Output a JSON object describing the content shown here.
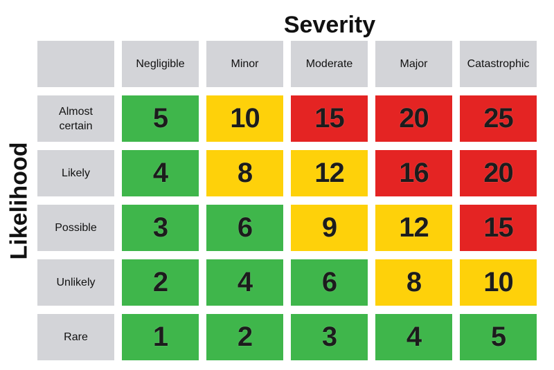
{
  "title": "Severity",
  "ylabel": "Likelihood",
  "columns": [
    "Negligible",
    "Minor",
    "Moderate",
    "Major",
    "Catastrophic"
  ],
  "rows": [
    "Almost\ncertain",
    "Likely",
    "Possible",
    "Unlikely",
    "Rare"
  ],
  "colors": {
    "green": "#3fb64b",
    "yellow": "#fed10a",
    "red": "#e42423",
    "header": "#d3d4d8"
  },
  "chart_data": {
    "type": "heatmap",
    "title": "Severity",
    "xlabel": "Severity",
    "ylabel": "Likelihood",
    "x": [
      "Negligible",
      "Minor",
      "Moderate",
      "Major",
      "Catastrophic"
    ],
    "y": [
      "Almost certain",
      "Likely",
      "Possible",
      "Unlikely",
      "Rare"
    ],
    "values": [
      [
        5,
        10,
        15,
        20,
        25
      ],
      [
        4,
        8,
        12,
        16,
        20
      ],
      [
        3,
        6,
        9,
        12,
        15
      ],
      [
        2,
        4,
        6,
        8,
        10
      ],
      [
        1,
        2,
        3,
        4,
        5
      ]
    ],
    "cell_colors": [
      [
        "green",
        "yellow",
        "red",
        "red",
        "red"
      ],
      [
        "green",
        "yellow",
        "yellow",
        "red",
        "red"
      ],
      [
        "green",
        "green",
        "yellow",
        "yellow",
        "red"
      ],
      [
        "green",
        "green",
        "green",
        "yellow",
        "yellow"
      ],
      [
        "green",
        "green",
        "green",
        "green",
        "green"
      ]
    ]
  }
}
